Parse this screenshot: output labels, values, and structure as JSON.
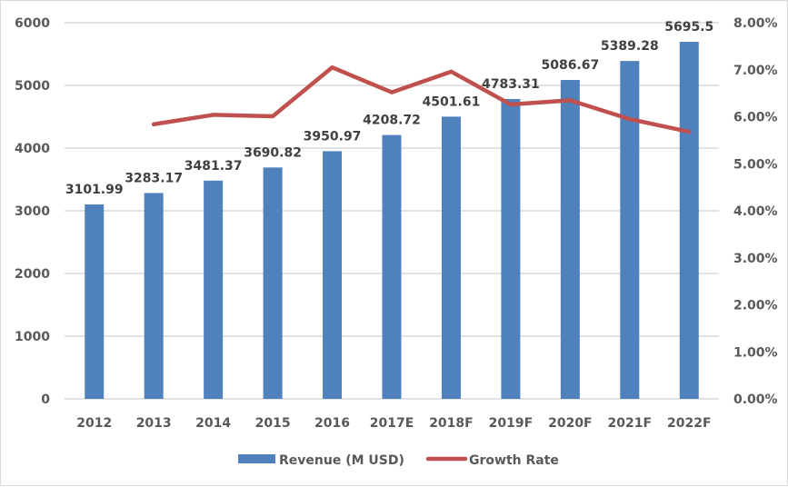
{
  "chart_data": {
    "type": "bar",
    "title": "",
    "xlabel": "",
    "ylabel": "",
    "categories": [
      "2012",
      "2013",
      "2014",
      "2015",
      "2016",
      "2017E",
      "2018F",
      "2019F",
      "2020F",
      "2021F",
      "2022F"
    ],
    "series": [
      {
        "name": "Revenue (M USD)",
        "type": "bar",
        "axis": "left",
        "color": "#4f81bd",
        "values": [
          3101.99,
          3283.17,
          3481.37,
          3690.82,
          3950.97,
          4208.72,
          4501.61,
          4783.31,
          5086.67,
          5389.28,
          5695.5
        ],
        "data_labels": [
          "3101.99",
          "3283.17",
          "3481.37",
          "3690.82",
          "3950.97",
          "4208.72",
          "4501.61",
          "4783.31",
          "5086.67",
          "5389.28",
          "5695.5"
        ]
      },
      {
        "name": "Growth Rate",
        "type": "line",
        "axis": "right",
        "color": "#c0504d",
        "values": [
          null,
          5.84,
          6.04,
          6.01,
          7.05,
          6.52,
          6.96,
          6.26,
          6.35,
          5.95,
          5.68
        ]
      }
    ],
    "ylim": [
      0,
      6000
    ],
    "yticks": [
      "0",
      "1000",
      "2000",
      "3000",
      "4000",
      "5000",
      "6000"
    ],
    "y2lim": [
      0,
      8
    ],
    "y2ticks": [
      "0.00%",
      "1.00%",
      "2.00%",
      "3.00%",
      "4.00%",
      "5.00%",
      "6.00%",
      "7.00%",
      "8.00%"
    ],
    "grid": true,
    "legend": "bottom"
  }
}
